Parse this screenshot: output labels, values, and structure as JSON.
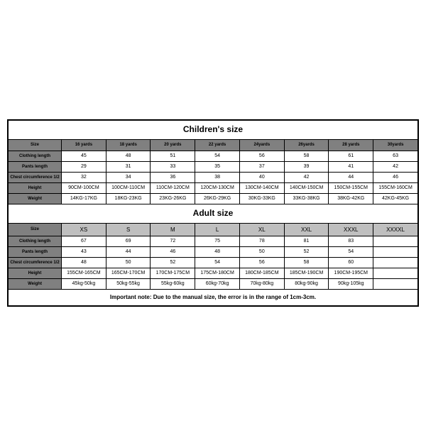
{
  "children": {
    "title": "Children's size",
    "columns": [
      "Size",
      "16 yards",
      "18 yards",
      "20 yards",
      "22 yards",
      "24yards",
      "26yards",
      "28 yards",
      "30yards"
    ],
    "rows": [
      {
        "label": "Clothing length",
        "values": [
          "45",
          "48",
          "51",
          "54",
          "56",
          "58",
          "61",
          "63"
        ]
      },
      {
        "label": "Pants length",
        "values": [
          "29",
          "31",
          "33",
          "35",
          "37",
          "39",
          "41",
          "42"
        ]
      },
      {
        "label": "Chest circumference 1/2",
        "values": [
          "32",
          "34",
          "36",
          "38",
          "40",
          "42",
          "44",
          "46"
        ]
      },
      {
        "label": "Height",
        "values": [
          "90CM-100CM",
          "100CM-110CM",
          "110CM-120CM",
          "120CM-130CM",
          "130CM-140CM",
          "140CM-150CM",
          "150CM-155CM",
          "155CM-160CM"
        ]
      },
      {
        "label": "Weight",
        "values": [
          "14KG-17KG",
          "18KG-23KG",
          "23KG-26KG",
          "26KG-29KG",
          "30KG-33KG",
          "33KG-38KG",
          "38KG-42KG",
          "42KG-45KG"
        ]
      }
    ]
  },
  "adult": {
    "title": "Adult size",
    "columns": [
      "Size",
      "XS",
      "S",
      "M",
      "L",
      "XL",
      "XXL",
      "XXXL",
      "XXXXL"
    ],
    "rows": [
      {
        "label": "Clothing length",
        "values": [
          "67",
          "69",
          "72",
          "75",
          "78",
          "81",
          "83",
          ""
        ]
      },
      {
        "label": "Pants length",
        "values": [
          "43",
          "44",
          "46",
          "48",
          "50",
          "52",
          "54",
          ""
        ]
      },
      {
        "label": "Chest circumference 1/2",
        "values": [
          "48",
          "50",
          "52",
          "54",
          "56",
          "58",
          "60",
          ""
        ]
      },
      {
        "label": "Height",
        "values": [
          "155CM-165CM",
          "165CM-170CM",
          "170CM-175CM",
          "175CM-180CM",
          "180CM-185CM",
          "185CM-190CM",
          "190CM-195CM",
          ""
        ]
      },
      {
        "label": "Weight",
        "values": [
          "45kg-50kg",
          "50kg-55kg",
          "55kg-60kg",
          "60kg-70kg",
          "70kg-80kg",
          "80kg-90kg",
          "90kg-105kg",
          ""
        ]
      }
    ]
  },
  "note": "Important note: Due to the manual size, the error is in the range of 1cm-3cm.",
  "style": {
    "header_bg": "#808080",
    "adult_size_bg": "#bfbfbf",
    "border_color": "#000000",
    "text_color": "#000000",
    "bg": "#ffffff"
  }
}
